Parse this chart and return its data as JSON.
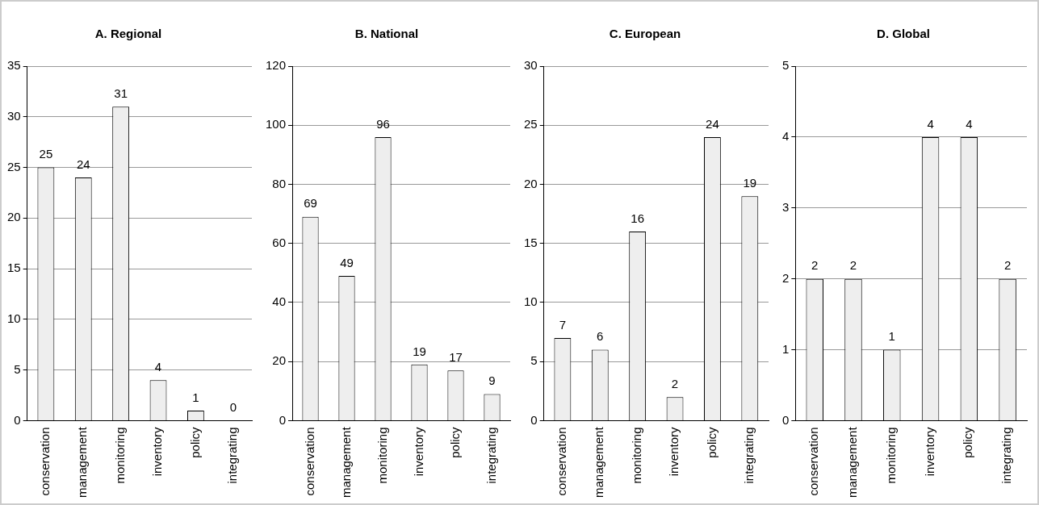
{
  "chart_data": [
    {
      "type": "bar",
      "title": "A. Regional",
      "categories": [
        "conservation",
        "management",
        "monitoring",
        "inventory",
        "policy",
        "integrating"
      ],
      "values": [
        25,
        24,
        31,
        4,
        1,
        0
      ],
      "color": "#eeeeee",
      "ylim": [
        0,
        35
      ],
      "yticks": [
        0,
        5,
        10,
        15,
        20,
        25,
        30,
        35
      ],
      "grid": "y",
      "data_labels": true
    },
    {
      "type": "bar",
      "title": "B. National",
      "categories": [
        "conservation",
        "management",
        "monitoring",
        "inventory",
        "policy",
        "integrating"
      ],
      "values": [
        69,
        49,
        96,
        19,
        17,
        9
      ],
      "color": "#eeeeee",
      "ylim": [
        0,
        120
      ],
      "yticks": [
        0,
        20,
        40,
        60,
        80,
        100,
        120
      ],
      "grid": "y",
      "data_labels": true
    },
    {
      "type": "bar",
      "title": "C. European",
      "categories": [
        "conservation",
        "management",
        "monitoring",
        "inventory",
        "policy",
        "integrating"
      ],
      "values": [
        7,
        6,
        16,
        2,
        24,
        19
      ],
      "color": "#eeeeee",
      "ylim": [
        0,
        30
      ],
      "yticks": [
        0,
        5,
        10,
        15,
        20,
        25,
        30
      ],
      "grid": "y",
      "data_labels": true
    },
    {
      "type": "bar",
      "title": "D. Global",
      "categories": [
        "conservation",
        "management",
        "monitoring",
        "inventory",
        "policy",
        "integrating"
      ],
      "values": [
        2,
        2,
        1,
        4,
        4,
        2
      ],
      "color": "#eeeeee",
      "ylim": [
        0,
        5
      ],
      "yticks": [
        0,
        1,
        2,
        3,
        4,
        5
      ],
      "grid": "y",
      "data_labels": true
    }
  ]
}
